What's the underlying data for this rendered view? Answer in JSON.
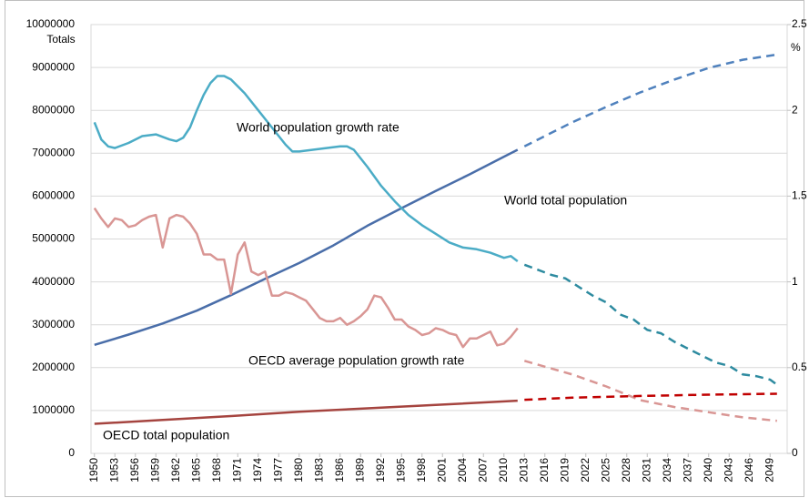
{
  "chart_data": {
    "type": "line",
    "ylabel": "Totals",
    "y2label": "%",
    "xlim": [
      1949.5,
      2051.5
    ],
    "xticks": [
      1950,
      1953,
      1956,
      1959,
      1962,
      1965,
      1968,
      1971,
      1974,
      1977,
      1980,
      1983,
      1986,
      1989,
      1992,
      1995,
      1998,
      2001,
      2004,
      2007,
      2010,
      2013,
      2016,
      2019,
      2022,
      2025,
      2028,
      2031,
      2034,
      2037,
      2040,
      2043,
      2046,
      2049
    ],
    "ylim": [
      0,
      10000000
    ],
    "yticks": [
      0,
      1000000,
      2000000,
      3000000,
      4000000,
      5000000,
      6000000,
      7000000,
      8000000,
      9000000,
      10000000
    ],
    "y2lim": [
      0,
      2.5
    ],
    "y2ticks": [
      0,
      0.5,
      1,
      1.5,
      2,
      2.5
    ],
    "grid": true,
    "series": [
      {
        "name": "World total population",
        "color": "#4a6ea9",
        "projection_color": "#4f81bd",
        "x": [
          1950,
          1955,
          1960,
          1965,
          1970,
          1975,
          1980,
          1985,
          1990,
          1995,
          2000,
          2005,
          2010,
          2012
        ],
        "values": [
          2530000,
          2770000,
          3030000,
          3330000,
          3690000,
          4070000,
          4440000,
          4850000,
          5310000,
          5720000,
          6120000,
          6510000,
          6920000,
          7080000
        ],
        "projection_x": [
          2013,
          2015,
          2020,
          2025,
          2030,
          2035,
          2040,
          2045,
          2050
        ],
        "projection_values": [
          7160000,
          7320000,
          7720000,
          8080000,
          8420000,
          8720000,
          8990000,
          9180000,
          9300000
        ]
      },
      {
        "name": "World population growth rate",
        "color": "#4bacc6",
        "projection_color": "#2e8ba0",
        "axis": "y2",
        "x": [
          1950,
          1951,
          1952,
          1953,
          1955,
          1957,
          1959,
          1961,
          1962,
          1963,
          1964,
          1965,
          1966,
          1967,
          1968,
          1969,
          1970,
          1972,
          1974,
          1976,
          1978,
          1979,
          1980,
          1982,
          1984,
          1986,
          1987,
          1988,
          1990,
          1992,
          1994,
          1996,
          1998,
          2000,
          2002,
          2004,
          2006,
          2008,
          2010,
          2011,
          2012
        ],
        "values": [
          1.93,
          1.83,
          1.79,
          1.78,
          1.81,
          1.85,
          1.86,
          1.83,
          1.82,
          1.84,
          1.9,
          2.0,
          2.09,
          2.16,
          2.2,
          2.2,
          2.18,
          2.1,
          2.0,
          1.9,
          1.8,
          1.76,
          1.76,
          1.77,
          1.78,
          1.79,
          1.79,
          1.77,
          1.67,
          1.56,
          1.47,
          1.39,
          1.33,
          1.28,
          1.23,
          1.2,
          1.19,
          1.17,
          1.14,
          1.15,
          1.12
        ],
        "projection_x": [
          2013,
          2015,
          2017,
          2019,
          2021,
          2023,
          2025,
          2027,
          2029,
          2031,
          2033,
          2035,
          2037,
          2039,
          2041,
          2043,
          2045,
          2047,
          2049,
          2050
        ],
        "projection_values": [
          1.1,
          1.07,
          1.04,
          1.02,
          0.97,
          0.92,
          0.88,
          0.81,
          0.78,
          0.72,
          0.7,
          0.65,
          0.61,
          0.57,
          0.53,
          0.51,
          0.46,
          0.45,
          0.43,
          0.4
        ]
      },
      {
        "name": "OECD average population growth rate",
        "color": "#d99694",
        "projection_color": "#d99694",
        "axis": "y2",
        "x": [
          1950,
          1951,
          1952,
          1953,
          1954,
          1955,
          1956,
          1957,
          1958,
          1959,
          1960,
          1961,
          1962,
          1963,
          1964,
          1965,
          1966,
          1967,
          1968,
          1969,
          1970,
          1971,
          1972,
          1973,
          1974,
          1975,
          1976,
          1977,
          1978,
          1979,
          1980,
          1981,
          1982,
          1983,
          1984,
          1985,
          1986,
          1987,
          1988,
          1989,
          1990,
          1991,
          1992,
          1993,
          1994,
          1995,
          1996,
          1997,
          1998,
          1999,
          2000,
          2001,
          2002,
          2003,
          2004,
          2005,
          2006,
          2007,
          2008,
          2009,
          2010,
          2011,
          2012
        ],
        "values": [
          1.43,
          1.37,
          1.32,
          1.37,
          1.36,
          1.32,
          1.33,
          1.36,
          1.38,
          1.39,
          1.2,
          1.37,
          1.39,
          1.38,
          1.34,
          1.28,
          1.16,
          1.16,
          1.13,
          1.13,
          0.93,
          1.16,
          1.23,
          1.06,
          1.04,
          1.06,
          0.92,
          0.92,
          0.94,
          0.93,
          0.91,
          0.89,
          0.84,
          0.79,
          0.77,
          0.77,
          0.79,
          0.75,
          0.77,
          0.8,
          0.84,
          0.92,
          0.91,
          0.85,
          0.78,
          0.78,
          0.74,
          0.72,
          0.69,
          0.7,
          0.73,
          0.72,
          0.7,
          0.69,
          0.62,
          0.67,
          0.67,
          0.69,
          0.71,
          0.63,
          0.64,
          0.68,
          0.73
        ],
        "projection_x": [
          2013,
          2020,
          2025,
          2030,
          2035,
          2040,
          2045,
          2050
        ],
        "projection_values": [
          0.54,
          0.46,
          0.39,
          0.31,
          0.27,
          0.24,
          0.21,
          0.19
        ]
      },
      {
        "name": "OECD total population",
        "color": "#a5443f",
        "projection_color": "#c00000",
        "x": [
          1950,
          1960,
          1970,
          1980,
          1990,
          2000,
          2012
        ],
        "values": [
          690000,
          780000,
          870000,
          970000,
          1050000,
          1130000,
          1230000
        ],
        "projection_x": [
          2013,
          2020,
          2030,
          2040,
          2050
        ],
        "projection_values": [
          1250000,
          1300000,
          1340000,
          1370000,
          1390000
        ]
      }
    ]
  }
}
